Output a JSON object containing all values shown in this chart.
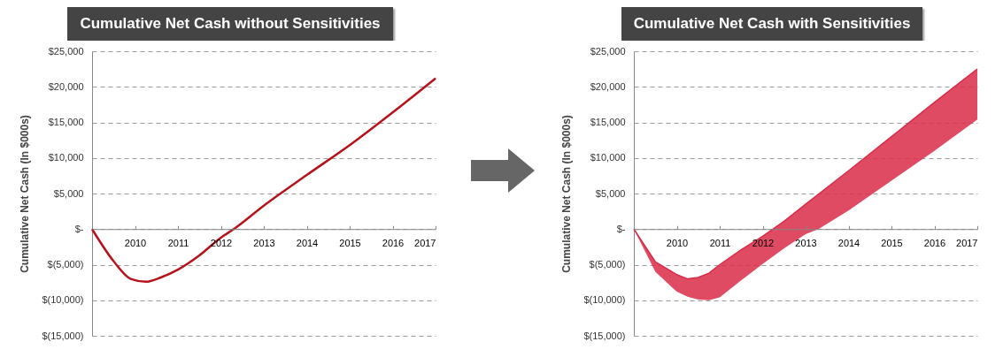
{
  "chart_data": [
    {
      "type": "line",
      "title": "Cumulative Net Cash without Sensitivities",
      "ylabel": "Cumulative Net Cash (In $000s)",
      "x": [
        2009,
        2009.5,
        2009.9,
        2010.25,
        2010.6,
        2011,
        2011.5,
        2012,
        2012.3,
        2013,
        2014,
        2015,
        2016,
        2017
      ],
      "series": [
        {
          "color": "#b5121b",
          "values": [
            0,
            -4500,
            -7000,
            -7400,
            -6800,
            -5700,
            -3700,
            -1200,
            0,
            3300,
            7600,
            11800,
            16400,
            21200
          ]
        }
      ],
      "xlim": [
        2009,
        2017
      ],
      "xticks": [
        2010,
        2011,
        2012,
        2013,
        2014,
        2015,
        2016,
        2017
      ],
      "ylim": [
        -15000,
        25000
      ],
      "yticks": [
        {
          "value": -15000,
          "label": "$(15,000)"
        },
        {
          "value": -10000,
          "label": "$(10,000)"
        },
        {
          "value": -5000,
          "label": "$(5,000)"
        },
        {
          "value": 0,
          "label": "$-"
        },
        {
          "value": 5000,
          "label": "$5,000"
        },
        {
          "value": 10000,
          "label": "$10,000"
        },
        {
          "value": 15000,
          "label": "$15,000"
        },
        {
          "value": 20000,
          "label": "$20,000"
        },
        {
          "value": 25000,
          "label": "$25,000"
        }
      ],
      "grid": "y"
    },
    {
      "type": "line",
      "title": "Cumulative Net Cash with Sensitivities",
      "ylabel": "Cumulative Net Cash (In $000s)",
      "x": [
        2009,
        2009.5,
        2010,
        2010.25,
        2010.5,
        2010.75,
        2011,
        2011.5,
        2012,
        2012.5,
        2013,
        2013.3,
        2014,
        2015,
        2016,
        2017
      ],
      "series": [
        {
          "color": "#d92b48",
          "values": [
            0,
            -4600,
            -6400,
            -7000,
            -6800,
            -6200,
            -5000,
            -2900,
            -1000,
            1100,
            3500,
            4900,
            8200,
            13000,
            17800,
            22500
          ],
          "upper": [
            0,
            -4600,
            -6400,
            -7000,
            -6800,
            -6200,
            -5000,
            -2900,
            -1000,
            1100,
            3500,
            4900,
            8200,
            13000,
            17800,
            22500
          ],
          "lower": [
            0,
            -6000,
            -8800,
            -9500,
            -9900,
            -10000,
            -9600,
            -7200,
            -4900,
            -2700,
            -700,
            0,
            2600,
            6800,
            11000,
            15400
          ]
        }
      ],
      "xlim": [
        2009,
        2017
      ],
      "xticks": [
        2010,
        2011,
        2012,
        2013,
        2014,
        2015,
        2016,
        2017
      ],
      "ylim": [
        -15000,
        25000
      ],
      "yticks": [
        {
          "value": -15000,
          "label": "$(15,000)"
        },
        {
          "value": -10000,
          "label": "$(10,000)"
        },
        {
          "value": -5000,
          "label": "$(5,000)"
        },
        {
          "value": 0,
          "label": "$-"
        },
        {
          "value": 5000,
          "label": "$5,000"
        },
        {
          "value": 10000,
          "label": "$10,000"
        },
        {
          "value": 15000,
          "label": "$15,000"
        },
        {
          "value": 20000,
          "label": "$20,000"
        },
        {
          "value": 25000,
          "label": "$25,000"
        }
      ],
      "grid": "y"
    }
  ]
}
